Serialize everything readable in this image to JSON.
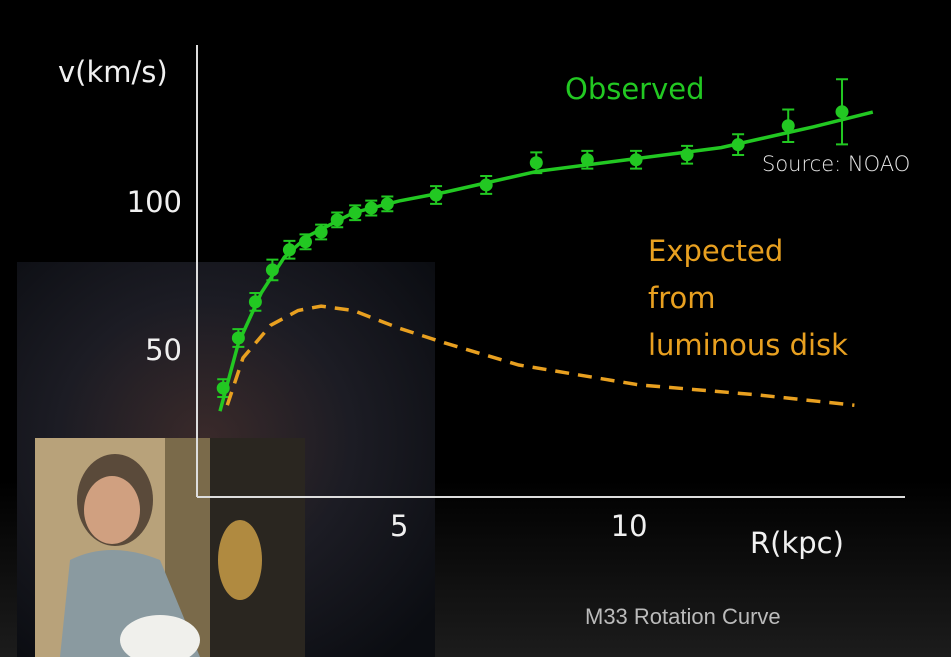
{
  "chart_data": {
    "type": "line",
    "xlabel": "R(kpc)",
    "ylabel": "v(km/s)",
    "subtitle": "M33 Rotation Curve",
    "source": "Source: NOAO",
    "xlim": [
      0.6,
      16
    ],
    "ylim": [
      0,
      154
    ],
    "xticks": [
      5,
      10
    ],
    "yticks": [
      50,
      100
    ],
    "grid": false,
    "series": [
      {
        "name": "Observed",
        "color": "#22c822",
        "x": [
          1.17,
          1.5,
          1.87,
          2.24,
          2.61,
          2.96,
          3.3,
          3.65,
          4.04,
          4.39,
          4.74,
          5.8,
          6.89,
          7.98,
          9.09,
          10.15,
          11.26,
          12.37,
          13.46,
          14.63
        ],
        "values": [
          37.8,
          54.7,
          66.9,
          77.7,
          84.5,
          87.2,
          90.5,
          94.6,
          97,
          98.6,
          100,
          103,
          106.4,
          113.9,
          114.9,
          114.9,
          116.6,
          120,
          126.4,
          131.1
        ],
        "errors": [
          3,
          3,
          3,
          3.5,
          3,
          2.5,
          2.5,
          2.5,
          2.5,
          2.5,
          2.5,
          3,
          3,
          3.5,
          3,
          3,
          3,
          3.5,
          5.5,
          11
        ],
        "fit_x": [
          1.1,
          1.5,
          2,
          2.5,
          3,
          4,
          5,
          6,
          8,
          10,
          12,
          14,
          15.3
        ],
        "fit_values": [
          30,
          53,
          70,
          82,
          89,
          97,
          101,
          104,
          111,
          115,
          119,
          126,
          131
        ]
      },
      {
        "name": "Expected\nfrom\nluminous disk",
        "color": "#e8a020",
        "dashed": true,
        "x": [
          1.26,
          1.6,
          2.2,
          2.8,
          3.3,
          4,
          5,
          6,
          7.6,
          10.2,
          12.8,
          14.9
        ],
        "values": [
          32,
          48,
          59,
          64,
          65.5,
          64,
          58,
          53,
          45.6,
          38.9,
          35.5,
          32
        ]
      }
    ]
  }
}
